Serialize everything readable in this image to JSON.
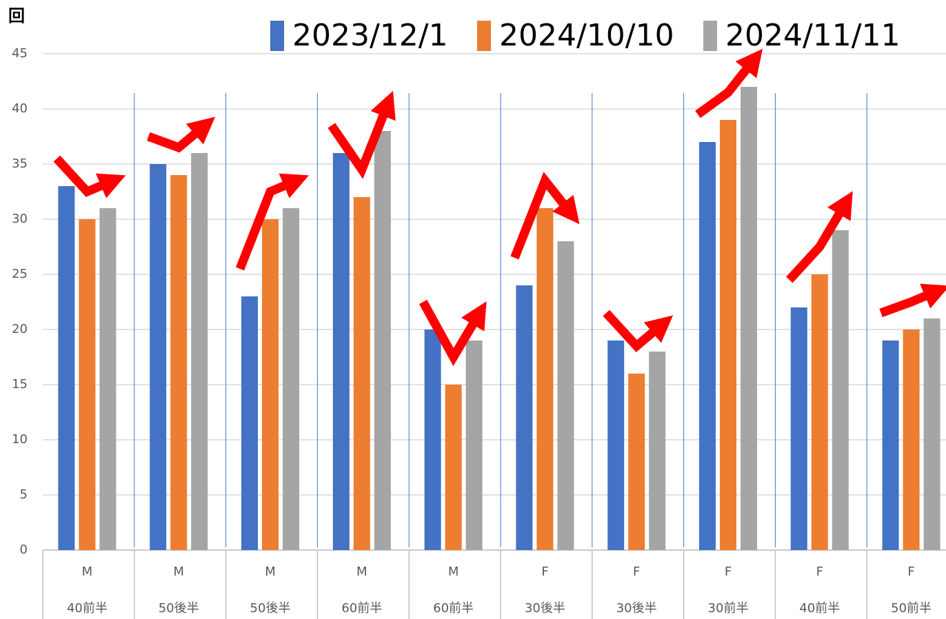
{
  "chart_data": {
    "type": "bar",
    "y_label": "回",
    "categories": [
      [
        "M",
        "40前半"
      ],
      [
        "M",
        "50後半"
      ],
      [
        "M",
        "50後半"
      ],
      [
        "M",
        "60前半"
      ],
      [
        "M",
        "60前半"
      ],
      [
        "F",
        "30後半"
      ],
      [
        "F",
        "30後半"
      ],
      [
        "F",
        "30前半"
      ],
      [
        "F",
        "40前半"
      ],
      [
        "F",
        "50前半"
      ]
    ],
    "series": [
      {
        "name": "2023/12/1",
        "color": "#4472c4",
        "values": [
          33,
          35,
          23,
          36,
          20,
          24,
          19,
          37,
          22,
          19
        ]
      },
      {
        "name": "2024/10/10",
        "color": "#ed7d31",
        "values": [
          30,
          34,
          30,
          32,
          15,
          31,
          16,
          39,
          25,
          20
        ]
      },
      {
        "name": "2024/11/11",
        "color": "#a5a5a5",
        "values": [
          31,
          36,
          31,
          38,
          19,
          28,
          18,
          42,
          29,
          21
        ]
      }
    ],
    "ylim": [
      0,
      45
    ],
    "yticks": [
      0,
      5,
      10,
      15,
      20,
      25,
      30,
      35,
      40,
      45
    ],
    "grid": true,
    "legend": "top-right"
  }
}
